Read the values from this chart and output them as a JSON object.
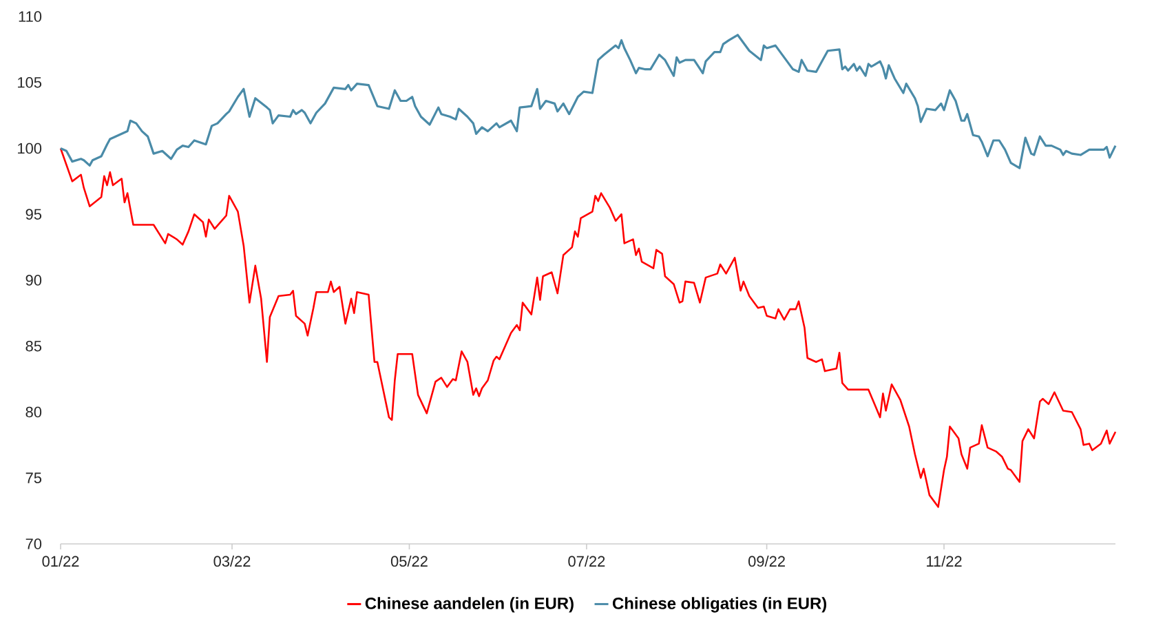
{
  "chart_data": {
    "type": "line",
    "xlim": [
      "2022-01-01",
      "2022-12-30"
    ],
    "xticks": [
      {
        "value": "2022-01-01",
        "label": "01/22"
      },
      {
        "value": "2022-03-01",
        "label": "03/22"
      },
      {
        "value": "2022-05-01",
        "label": "05/22"
      },
      {
        "value": "2022-07-01",
        "label": "07/22"
      },
      {
        "value": "2022-09-01",
        "label": "09/22"
      },
      {
        "value": "2022-11-01",
        "label": "11/22"
      }
    ],
    "ylim": [
      70,
      110
    ],
    "yticks": [
      70,
      75,
      80,
      85,
      90,
      95,
      100,
      105,
      110
    ],
    "grid": false,
    "legend": "bottom",
    "series": [
      {
        "name": "Chinese aandelen (in EUR)",
        "color": "#ff0000",
        "x": [
          "2022-01-01",
          "2022-01-05",
          "2022-01-08",
          "2022-01-09",
          "2022-01-11",
          "2022-01-15",
          "2022-01-16",
          "2022-01-17",
          "2022-01-18",
          "2022-01-19",
          "2022-01-22",
          "2022-01-23",
          "2022-01-24",
          "2022-01-26",
          "2022-02-02",
          "2022-02-06",
          "2022-02-07",
          "2022-02-10",
          "2022-02-12",
          "2022-02-14",
          "2022-02-16",
          "2022-02-19",
          "2022-02-20",
          "2022-02-21",
          "2022-02-23",
          "2022-02-27",
          "2022-02-28",
          "2022-03-03",
          "2022-03-05",
          "2022-03-07",
          "2022-03-09",
          "2022-03-11",
          "2022-03-13",
          "2022-03-14",
          "2022-03-17",
          "2022-03-21",
          "2022-03-22",
          "2022-03-23",
          "2022-03-26",
          "2022-03-27",
          "2022-03-29",
          "2022-03-30",
          "2022-04-03",
          "2022-04-04",
          "2022-04-05",
          "2022-04-07",
          "2022-04-09",
          "2022-04-11",
          "2022-04-12",
          "2022-04-13",
          "2022-04-17",
          "2022-04-19",
          "2022-04-20",
          "2022-04-24",
          "2022-04-25",
          "2022-04-26",
          "2022-04-27",
          "2022-05-02",
          "2022-05-04",
          "2022-05-07",
          "2022-05-10",
          "2022-05-12",
          "2022-05-14",
          "2022-05-16",
          "2022-05-17",
          "2022-05-19",
          "2022-05-21",
          "2022-05-23",
          "2022-05-24",
          "2022-05-25",
          "2022-05-26",
          "2022-05-28",
          "2022-05-30",
          "2022-05-31",
          "2022-06-01",
          "2022-06-05",
          "2022-06-07",
          "2022-06-08",
          "2022-06-09",
          "2022-06-12",
          "2022-06-14",
          "2022-06-15",
          "2022-06-16",
          "2022-06-19",
          "2022-06-21",
          "2022-06-23",
          "2022-06-26",
          "2022-06-27",
          "2022-06-28",
          "2022-06-29",
          "2022-07-03",
          "2022-07-04",
          "2022-07-05",
          "2022-07-06",
          "2022-07-09",
          "2022-07-11",
          "2022-07-13",
          "2022-07-14",
          "2022-07-17",
          "2022-07-18",
          "2022-07-19",
          "2022-07-20",
          "2022-07-24",
          "2022-07-25",
          "2022-07-27",
          "2022-07-28",
          "2022-07-31",
          "2022-08-02",
          "2022-08-03",
          "2022-08-04",
          "2022-08-07",
          "2022-08-09",
          "2022-08-11",
          "2022-08-15",
          "2022-08-16",
          "2022-08-18",
          "2022-08-21",
          "2022-08-23",
          "2022-08-24",
          "2022-08-26",
          "2022-08-29",
          "2022-08-31",
          "2022-09-01",
          "2022-09-04",
          "2022-09-05",
          "2022-09-07",
          "2022-09-09",
          "2022-09-11",
          "2022-09-12",
          "2022-09-14",
          "2022-09-15",
          "2022-09-18",
          "2022-09-20",
          "2022-09-21",
          "2022-09-25",
          "2022-09-26",
          "2022-09-27",
          "2022-09-29",
          "2022-10-06",
          "2022-10-10",
          "2022-10-11",
          "2022-10-12",
          "2022-10-14",
          "2022-10-17",
          "2022-10-20",
          "2022-10-22",
          "2022-10-24",
          "2022-10-25",
          "2022-10-27",
          "2022-10-30",
          "2022-11-01",
          "2022-11-02",
          "2022-11-03",
          "2022-11-06",
          "2022-11-07",
          "2022-11-09",
          "2022-11-10",
          "2022-11-13",
          "2022-11-14",
          "2022-11-16",
          "2022-11-19",
          "2022-11-21",
          "2022-11-23",
          "2022-11-24",
          "2022-11-27",
          "2022-11-28",
          "2022-11-30",
          "2022-12-02",
          "2022-12-04",
          "2022-12-05",
          "2022-12-07",
          "2022-12-09",
          "2022-12-12",
          "2022-12-15",
          "2022-12-18",
          "2022-12-19",
          "2022-12-21",
          "2022-12-22",
          "2022-12-25",
          "2022-12-27",
          "2022-12-28",
          "2022-12-30"
        ],
        "values": [
          100.0,
          97.5,
          98.0,
          97.0,
          95.6,
          96.3,
          97.9,
          97.2,
          98.2,
          97.2,
          97.7,
          95.9,
          96.6,
          94.2,
          94.2,
          92.8,
          93.5,
          93.1,
          92.7,
          93.7,
          95.0,
          94.4,
          93.3,
          94.6,
          93.9,
          94.9,
          96.4,
          95.2,
          92.6,
          88.3,
          91.1,
          88.6,
          83.8,
          87.2,
          88.8,
          88.9,
          89.2,
          87.3,
          86.7,
          85.8,
          87.9,
          89.1,
          89.1,
          89.9,
          89.1,
          89.5,
          86.7,
          88.6,
          87.5,
          89.1,
          88.9,
          83.8,
          83.8,
          79.6,
          79.4,
          82.4,
          84.4,
          84.4,
          81.3,
          79.9,
          82.3,
          82.6,
          81.9,
          82.5,
          82.4,
          84.6,
          83.8,
          81.3,
          81.8,
          81.2,
          81.8,
          82.4,
          83.9,
          84.2,
          84.0,
          86.0,
          86.6,
          86.2,
          88.3,
          87.4,
          90.2,
          88.5,
          90.3,
          90.6,
          89.0,
          91.9,
          92.5,
          93.7,
          93.3,
          94.7,
          95.2,
          96.4,
          96.0,
          96.6,
          95.5,
          94.5,
          95.0,
          92.8,
          93.1,
          91.9,
          92.4,
          91.4,
          90.9,
          92.3,
          92.0,
          90.3,
          89.7,
          88.3,
          88.4,
          89.9,
          89.8,
          88.3,
          90.2,
          90.5,
          91.2,
          90.5,
          91.7,
          89.2,
          89.9,
          88.8,
          87.9,
          88.0,
          87.3,
          87.1,
          87.8,
          87.0,
          87.8,
          87.8,
          88.4,
          86.4,
          84.1,
          83.8,
          84.0,
          83.1,
          83.3,
          84.5,
          82.2,
          81.7,
          81.7,
          79.6,
          81.4,
          80.1,
          82.1,
          80.9,
          78.9,
          76.8,
          75.0,
          75.7,
          73.7,
          72.8,
          75.6,
          76.6,
          78.9,
          78.0,
          76.8,
          75.7,
          77.3,
          77.6,
          79.0,
          77.3,
          77.0,
          76.6,
          75.7,
          75.6,
          74.7,
          77.8,
          78.7,
          78.0,
          80.8,
          81.0,
          80.6,
          81.5,
          80.1,
          80.0,
          78.7,
          77.5,
          77.6,
          77.1,
          77.6,
          78.6,
          77.6,
          78.5
        ]
      },
      {
        "name": "Chinese obligaties (in EUR)",
        "color": "#4a8ba8",
        "x": [
          "2022-01-01",
          "2022-01-03",
          "2022-01-05",
          "2022-01-08",
          "2022-01-09",
          "2022-01-11",
          "2022-01-12",
          "2022-01-15",
          "2022-01-17",
          "2022-01-18",
          "2022-01-21",
          "2022-01-24",
          "2022-01-25",
          "2022-01-27",
          "2022-01-29",
          "2022-01-31",
          "2022-02-02",
          "2022-02-05",
          "2022-02-08",
          "2022-02-10",
          "2022-02-12",
          "2022-02-14",
          "2022-02-16",
          "2022-02-20",
          "2022-02-22",
          "2022-02-24",
          "2022-02-27",
          "2022-02-28",
          "2022-03-03",
          "2022-03-05",
          "2022-03-07",
          "2022-03-09",
          "2022-03-13",
          "2022-03-14",
          "2022-03-15",
          "2022-03-17",
          "2022-03-21",
          "2022-03-22",
          "2022-03-23",
          "2022-03-25",
          "2022-03-26",
          "2022-03-28",
          "2022-03-30",
          "2022-04-02",
          "2022-04-05",
          "2022-04-09",
          "2022-04-10",
          "2022-04-11",
          "2022-04-13",
          "2022-04-17",
          "2022-04-20",
          "2022-04-24",
          "2022-04-26",
          "2022-04-28",
          "2022-04-30",
          "2022-05-02",
          "2022-05-03",
          "2022-05-05",
          "2022-05-08",
          "2022-05-11",
          "2022-05-12",
          "2022-05-15",
          "2022-05-17",
          "2022-05-18",
          "2022-05-21",
          "2022-05-23",
          "2022-05-24",
          "2022-05-26",
          "2022-05-28",
          "2022-05-31",
          "2022-06-01",
          "2022-06-05",
          "2022-06-07",
          "2022-06-08",
          "2022-06-12",
          "2022-06-14",
          "2022-06-15",
          "2022-06-17",
          "2022-06-20",
          "2022-06-21",
          "2022-06-23",
          "2022-06-25",
          "2022-06-28",
          "2022-06-30",
          "2022-07-03",
          "2022-07-05",
          "2022-07-07",
          "2022-07-11",
          "2022-07-12",
          "2022-07-13",
          "2022-07-14",
          "2022-07-16",
          "2022-07-18",
          "2022-07-19",
          "2022-07-21",
          "2022-07-23",
          "2022-07-26",
          "2022-07-28",
          "2022-07-31",
          "2022-08-01",
          "2022-08-02",
          "2022-08-04",
          "2022-08-07",
          "2022-08-10",
          "2022-08-11",
          "2022-08-14",
          "2022-08-16",
          "2022-08-17",
          "2022-08-19",
          "2022-08-22",
          "2022-08-23",
          "2022-08-26",
          "2022-08-30",
          "2022-08-31",
          "2022-09-01",
          "2022-09-04",
          "2022-09-07",
          "2022-09-10",
          "2022-09-12",
          "2022-09-13",
          "2022-09-15",
          "2022-09-18",
          "2022-09-20",
          "2022-09-22",
          "2022-09-26",
          "2022-09-27",
          "2022-09-28",
          "2022-09-29",
          "2022-10-01",
          "2022-10-02",
          "2022-10-03",
          "2022-10-05",
          "2022-10-06",
          "2022-10-07",
          "2022-10-10",
          "2022-10-11",
          "2022-10-12",
          "2022-10-13",
          "2022-10-15",
          "2022-10-18",
          "2022-10-19",
          "2022-10-22",
          "2022-10-23",
          "2022-10-24",
          "2022-10-26",
          "2022-10-29",
          "2022-10-31",
          "2022-11-01",
          "2022-11-03",
          "2022-11-05",
          "2022-11-07",
          "2022-11-08",
          "2022-11-09",
          "2022-11-11",
          "2022-11-13",
          "2022-11-14",
          "2022-11-16",
          "2022-11-18",
          "2022-11-20",
          "2022-11-22",
          "2022-11-24",
          "2022-11-27",
          "2022-11-29",
          "2022-12-01",
          "2022-12-02",
          "2022-12-04",
          "2022-12-06",
          "2022-12-08",
          "2022-12-11",
          "2022-12-12",
          "2022-12-13",
          "2022-12-15",
          "2022-12-18",
          "2022-12-21",
          "2022-12-26",
          "2022-12-27",
          "2022-12-28",
          "2022-12-30"
        ],
        "values": [
          100.0,
          99.8,
          99.0,
          99.2,
          99.1,
          98.7,
          99.1,
          99.4,
          100.3,
          100.7,
          101.0,
          101.3,
          102.1,
          101.9,
          101.3,
          100.9,
          99.6,
          99.8,
          99.2,
          99.9,
          100.2,
          100.1,
          100.6,
          100.3,
          101.7,
          101.9,
          102.6,
          102.8,
          103.9,
          104.5,
          102.4,
          103.8,
          103.1,
          102.9,
          101.9,
          102.5,
          102.4,
          102.9,
          102.6,
          102.9,
          102.7,
          101.9,
          102.7,
          103.4,
          104.6,
          104.5,
          104.8,
          104.4,
          104.9,
          104.8,
          103.2,
          103.0,
          104.4,
          103.6,
          103.6,
          103.9,
          103.2,
          102.4,
          101.8,
          103.1,
          102.6,
          102.4,
          102.2,
          103.0,
          102.4,
          101.9,
          101.1,
          101.6,
          101.3,
          101.9,
          101.6,
          102.1,
          101.3,
          103.1,
          103.2,
          104.5,
          103.0,
          103.6,
          103.4,
          102.8,
          103.4,
          102.6,
          103.9,
          104.3,
          104.2,
          106.7,
          107.1,
          107.8,
          107.6,
          108.2,
          107.6,
          106.7,
          105.7,
          106.1,
          106.0,
          106.0,
          107.1,
          106.7,
          105.5,
          106.9,
          106.5,
          106.7,
          106.7,
          105.7,
          106.6,
          107.3,
          107.3,
          107.9,
          108.2,
          108.6,
          108.3,
          107.4,
          106.7,
          107.8,
          107.6,
          107.8,
          106.9,
          106.0,
          105.8,
          106.7,
          105.9,
          105.8,
          106.6,
          107.4,
          107.5,
          106.0,
          106.2,
          105.9,
          106.4,
          105.9,
          106.2,
          105.5,
          106.4,
          106.2,
          106.6,
          106.1,
          105.3,
          106.3,
          105.3,
          104.2,
          104.9,
          103.8,
          103.2,
          102.0,
          103.0,
          102.9,
          103.4,
          102.9,
          104.4,
          103.6,
          102.1,
          102.1,
          102.6,
          101.0,
          100.9,
          100.5,
          99.4,
          100.6,
          100.6,
          99.9,
          98.9,
          98.5,
          100.8,
          99.6,
          99.5,
          100.9,
          100.2,
          100.2,
          99.9,
          99.5,
          99.8,
          99.6,
          99.5,
          99.9,
          99.9,
          100.1,
          99.3,
          100.2
        ]
      }
    ]
  }
}
